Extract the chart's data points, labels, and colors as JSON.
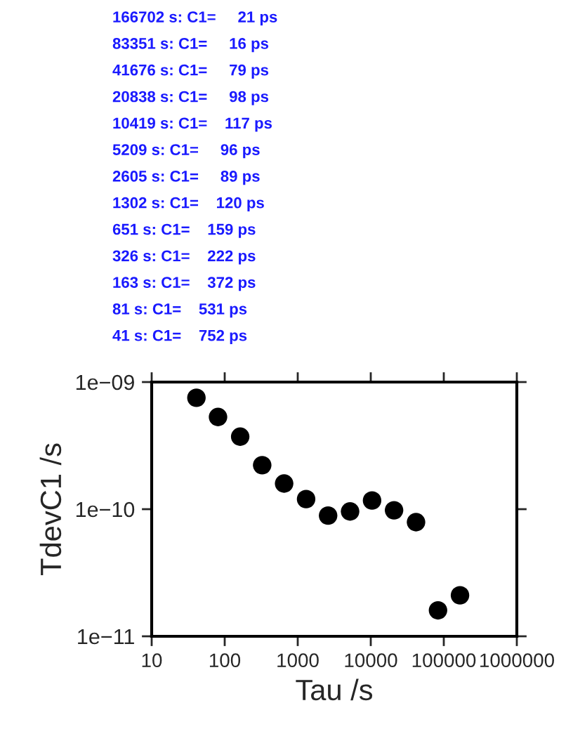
{
  "chart_data": {
    "type": "scatter",
    "xlabel": "Tau /s",
    "ylabel": "TdevC1 /s",
    "log": "xy",
    "marker": "circle",
    "grid": false,
    "x": [
      41,
      81,
      163,
      326,
      651,
      1302,
      2605,
      5209,
      10419,
      20838,
      41676,
      83351,
      166702
    ],
    "series": [
      {
        "color": "#000000",
        "values": [
          7.52e-10,
          5.31e-10,
          3.72e-10,
          2.22e-10,
          1.59e-10,
          1.2e-10,
          8.9e-11,
          9.6e-11,
          1.17e-10,
          9.8e-11,
          7.9e-11,
          1.6e-11,
          2.1e-11
        ]
      }
    ],
    "xlim": [
      10,
      1000000
    ],
    "xticks": [
      10,
      100,
      1000,
      10000,
      100000,
      1000000
    ],
    "ylim": [
      1e-11,
      1e-09
    ],
    "yticks": [
      {
        "value": 1e-11,
        "label": "1e−11"
      },
      {
        "value": 1e-10,
        "label": "1e−10"
      },
      {
        "value": 1e-09,
        "label": "1e−09"
      }
    ],
    "annotations": [
      "166702 s: C1=     21 ps",
      "83351 s: C1=     16 ps",
      "41676 s: C1=     79 ps",
      "20838 s: C1=     98 ps",
      "10419 s: C1=    117 ps",
      "5209 s: C1=     96 ps",
      "2605 s: C1=     89 ps",
      "1302 s: C1=    120 ps",
      "651 s: C1=    159 ps",
      "326 s: C1=    222 ps",
      "163 s: C1=    372 ps",
      "81 s: C1=    531 ps",
      "41 s: C1=    752 ps"
    ]
  }
}
